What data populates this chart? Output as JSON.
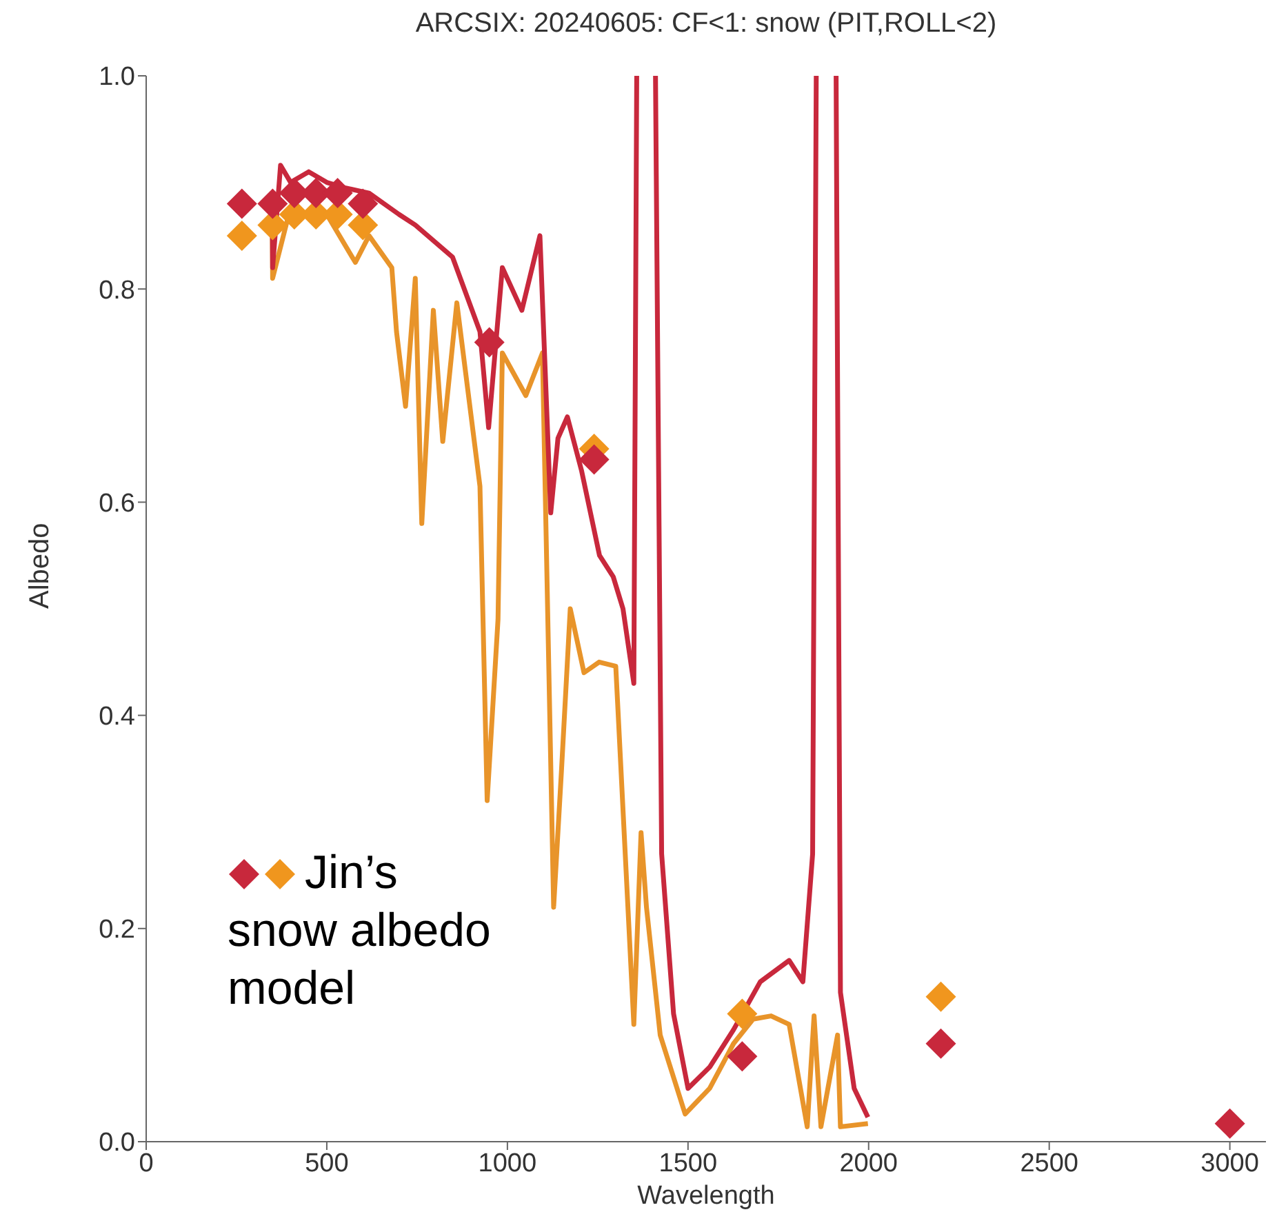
{
  "chart_data": {
    "type": "line",
    "title": "ARCSIX: 20240605: CF<1: snow (PIT,ROLL<2)",
    "xlabel": "Wavelength",
    "ylabel": "Albedo",
    "legend": "bottom left",
    "xlim": [
      0,
      3100
    ],
    "xticks": [
      0,
      500,
      1000,
      1500,
      2000,
      2500,
      3000
    ],
    "ylim": [
      0,
      1
    ],
    "yticks": [
      {
        "value": 0,
        "label": "0.0"
      },
      0.2,
      0.4,
      0.6,
      0.8,
      {
        "value": 1,
        "label": "1.0"
      }
    ],
    "grid": false,
    "line_style": "solid",
    "series": [
      {
        "type": "line",
        "marker": "none",
        "color": "#c8283c",
        "x": [
          349,
          350,
          372,
          400,
          450,
          500,
          550,
          617,
          700,
          745,
          848,
          924,
          948,
          986,
          1040,
          1090,
          1120,
          1140,
          1166,
          1205,
          1255,
          1293,
          1320,
          1350,
          1358,
          1380,
          1410,
          1427,
          1460,
          1500,
          1560,
          1626,
          1700,
          1780,
          1818,
          1845,
          1855,
          1880,
          1910,
          1922,
          1960,
          1998
        ],
        "values": [
          0.89,
          0.82,
          0.916,
          0.9,
          0.91,
          0.9,
          0.895,
          0.89,
          0.87,
          0.86,
          0.83,
          0.76,
          0.67,
          0.82,
          0.78,
          0.85,
          0.59,
          0.66,
          0.68,
          0.63,
          0.55,
          0.53,
          0.5,
          0.43,
          1.0,
          null,
          1.0,
          0.27,
          0.12,
          0.05,
          0.07,
          0.105,
          0.15,
          0.17,
          0.15,
          0.27,
          1.0,
          null,
          1.0,
          0.14,
          0.05,
          0.023
        ]
      },
      {
        "type": "line",
        "marker": "none",
        "color": "#e8942a",
        "x": [
          349,
          350,
          400,
          450,
          500,
          579,
          617,
          680,
          693,
          718,
          745,
          763,
          795,
          821,
          860,
          924,
          944,
          974,
          986,
          1051,
          1097,
          1128,
          1150,
          1174,
          1212,
          1254,
          1300,
          1350,
          1370,
          1385,
          1423,
          1492,
          1560,
          1626,
          1680,
          1730,
          1780,
          1830,
          1849,
          1868,
          1914,
          1922,
          1998
        ],
        "values": [
          0.87,
          0.81,
          0.877,
          0.87,
          0.87,
          0.825,
          0.85,
          0.82,
          0.76,
          0.69,
          0.81,
          0.58,
          0.78,
          0.657,
          0.787,
          0.615,
          0.32,
          0.49,
          0.74,
          0.7,
          0.74,
          0.22,
          0.35,
          0.5,
          0.44,
          0.45,
          0.446,
          0.11,
          0.29,
          0.22,
          0.1,
          0.026,
          0.05,
          0.092,
          0.115,
          0.118,
          0.11,
          0.014,
          0.118,
          0.014,
          0.1,
          0.014,
          0.017
        ]
      },
      {
        "type": "scatter",
        "name": "Jin’s snow albedo model",
        "marker": "diamond",
        "colors": [
          "#c8283c",
          "#f0961e",
          "#f0961e",
          "#f0961e",
          "#f0961e",
          "#f0961e",
          "#f0961e",
          "#f0961e",
          "#f0961e",
          "#f0961e",
          "#c8283c",
          "#c8283c",
          "#c8283c",
          "#c8283c",
          "#c8283c",
          "#c8283c",
          "#c8283c",
          "#c8283c",
          "#c8283c",
          "#c8283c"
        ],
        "x": [
          265,
          265,
          350,
          410,
          470,
          530,
          600,
          1240,
          1650,
          2200,
          350,
          410,
          470,
          530,
          600,
          950,
          1240,
          1650,
          2200,
          3000
        ],
        "values": [
          0.88,
          0.85,
          0.86,
          0.87,
          0.87,
          0.87,
          0.86,
          0.65,
          0.12,
          0.136,
          0.88,
          0.89,
          0.89,
          0.89,
          0.88,
          0.75,
          0.64,
          0.08,
          0.092,
          0.017
        ]
      }
    ]
  }
}
